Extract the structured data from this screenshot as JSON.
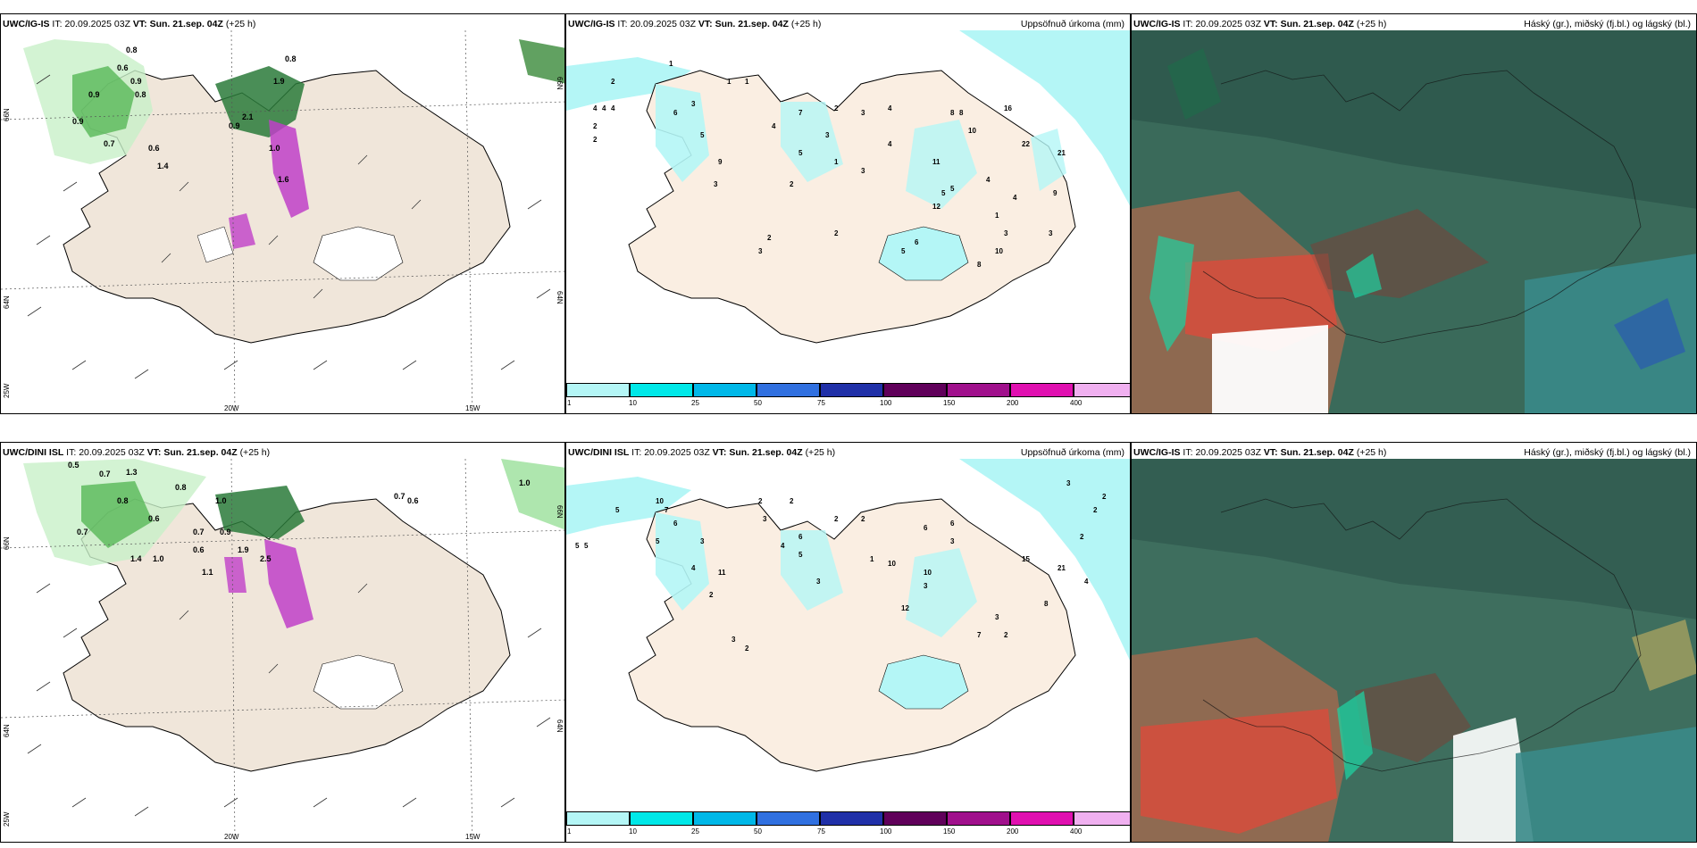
{
  "panels": {
    "wind_top": {
      "model": "UWC/IG-IS",
      "it_label": "IT:",
      "it": "20.09.2025 03Z",
      "vt_label": "VT:",
      "vt": "Sun. 21.sep. 04Z",
      "lead": "(+25 h)"
    },
    "precip_top": {
      "model": "UWC/IG-IS",
      "it_label": "IT:",
      "it": "20.09.2025 03Z",
      "vt_label": "VT:",
      "vt": "Sun. 21.sep. 04Z",
      "lead": "(+25 h)",
      "title_right": "Uppsöfnuð úrkoma (mm)"
    },
    "cloud_top": {
      "model": "UWC/IG-IS",
      "it_label": "IT:",
      "it": "20.09.2025 03Z",
      "vt_label": "VT:",
      "vt": "Sun. 21.sep. 04Z",
      "lead": "(+25 h)",
      "title_right": "Háský (gr.), miðský (fj.bl.) og lágský (bl.)"
    },
    "wind_bottom": {
      "model": "UWC/DINI ISL",
      "it_label": "IT:",
      "it": "20.09.2025 03Z",
      "vt_label": "VT:",
      "vt": "Sun. 21.sep. 04Z",
      "lead": "(+25 h)"
    },
    "precip_bottom": {
      "model": "UWC/DINI ISL",
      "it_label": "IT:",
      "it": "20.09.2025 03Z",
      "vt_label": "VT:",
      "vt": "Sun. 21.sep. 04Z",
      "lead": "(+25 h)",
      "title_right": "Uppsöfnuð úrkoma (mm)"
    },
    "cloud_bottom": {
      "model": "UWC/IG-IS",
      "it_label": "IT:",
      "it": "20.09.2025 03Z",
      "vt_label": "VT:",
      "vt": "Sun. 21.sep. 04Z",
      "lead": "(+25 h)",
      "title_right": "Háský (gr.), miðský (fj.bl.) og lágský (bl.)"
    }
  },
  "axes": {
    "lon_20": "20W",
    "lon_15": "15W",
    "lat_66": "66N",
    "lat_64": "64N",
    "lon_25": "25W"
  },
  "colorbar": {
    "ticks": [
      "1",
      "10",
      "25",
      "50",
      "75",
      "100",
      "150",
      "200",
      "400"
    ],
    "colors": [
      "#b4f6f6",
      "#00e8e8",
      "#00b8e8",
      "#3070e0",
      "#2030a8",
      "#60005a",
      "#a0108c",
      "#e010b0",
      "#f0b0f0"
    ]
  },
  "precip_values_top": [
    "2",
    "4",
    "4",
    "4",
    "2",
    "2",
    "1",
    "1",
    "1",
    "3",
    "6",
    "9",
    "5",
    "3",
    "4",
    "7",
    "5",
    "3",
    "2",
    "3",
    "4",
    "1",
    "3",
    "2",
    "4",
    "11",
    "5",
    "8",
    "8",
    "10",
    "16",
    "22",
    "21",
    "3",
    "9",
    "12",
    "5",
    "4",
    "4",
    "1",
    "3",
    "10",
    "8",
    "5",
    "6",
    "3",
    "2",
    "2"
  ],
  "precip_values_bottom": [
    "5",
    "5",
    "5",
    "10",
    "7",
    "6",
    "5",
    "3",
    "4",
    "11",
    "2",
    "2",
    "3",
    "2",
    "6",
    "5",
    "4",
    "3",
    "2",
    "1",
    "2",
    "10",
    "12",
    "6",
    "3",
    "3",
    "10",
    "6",
    "7",
    "3",
    "2",
    "15",
    "21",
    "4",
    "2",
    "2",
    "2",
    "3",
    "8",
    "3",
    "2"
  ],
  "wind_values_top": [
    "0.8",
    "0.8",
    "0.6",
    "0.9",
    "0.9",
    "0.8",
    "1.9",
    "0.9",
    "0.7",
    "0.6",
    "1.4",
    "0.9",
    "2.1",
    "1.0",
    "1.6"
  ],
  "wind_values_bottom": [
    "0.5",
    "0.7",
    "1.3",
    "0.8",
    "0.8",
    "1.0",
    "0.7",
    "0.6",
    "0.7",
    "0.9",
    "1.4",
    "1.0",
    "0.6",
    "1.1",
    "1.0",
    "0.7",
    "0.6",
    "1.9",
    "2.5"
  ]
}
